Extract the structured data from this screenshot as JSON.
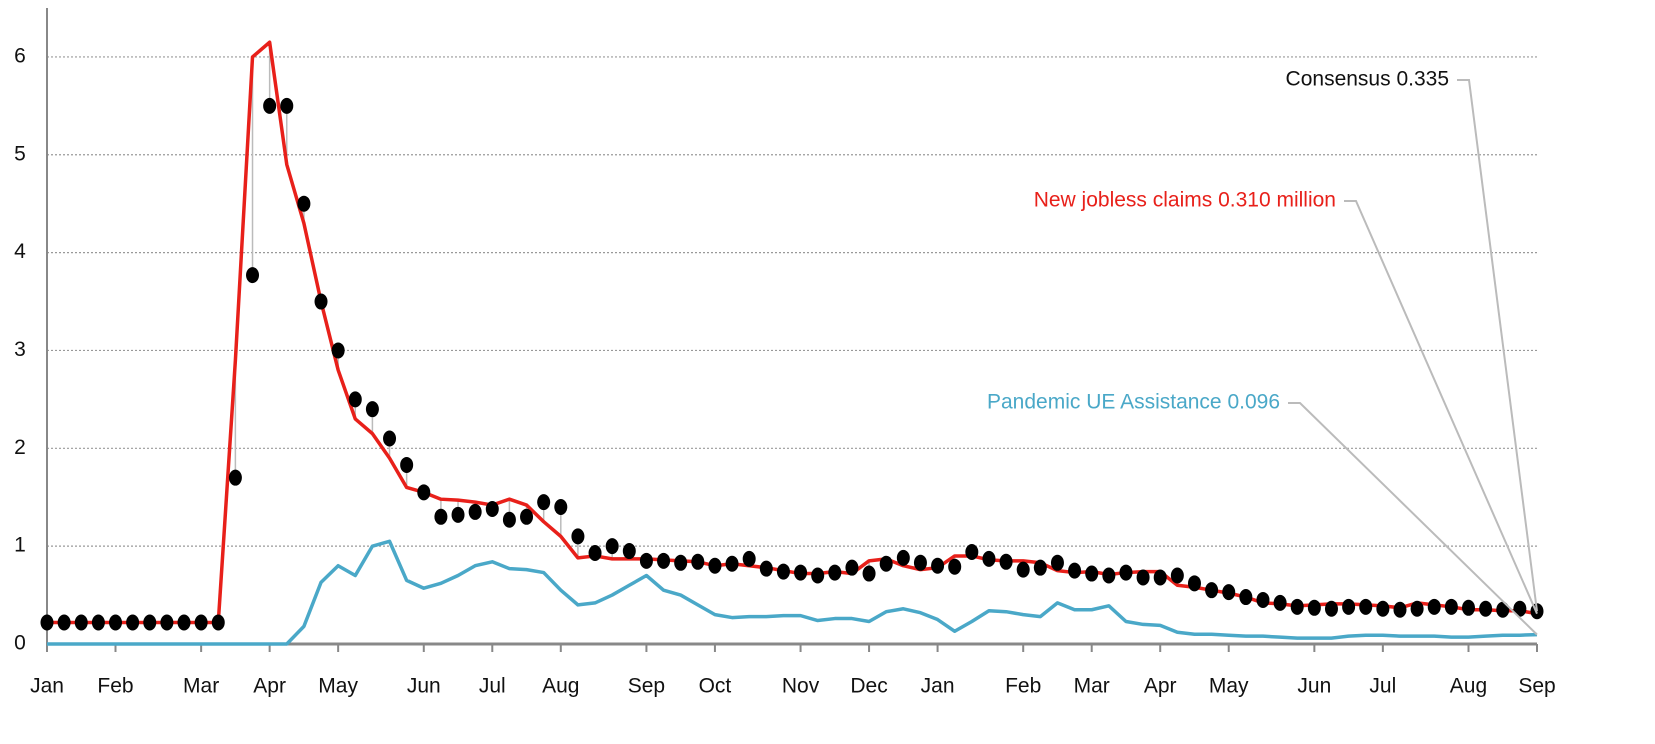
{
  "chart_data": {
    "type": "line",
    "categories": [
      "Jan",
      null,
      null,
      null,
      "Feb",
      null,
      null,
      null,
      null,
      "Mar",
      null,
      null,
      null,
      "Apr",
      null,
      null,
      null,
      "May",
      null,
      null,
      null,
      null,
      "Jun",
      null,
      null,
      null,
      "Jul",
      null,
      null,
      null,
      "Aug",
      null,
      null,
      null,
      null,
      "Sep",
      null,
      null,
      null,
      "Oct",
      null,
      null,
      null,
      null,
      "Nov",
      null,
      null,
      null,
      "Dec",
      null,
      null,
      null,
      "Jan",
      null,
      null,
      null,
      null,
      "Feb",
      null,
      null,
      null,
      "Mar",
      null,
      null,
      null,
      "Apr",
      null,
      null,
      null,
      "May",
      null,
      null,
      null,
      null,
      "Jun",
      null,
      null,
      null,
      "Jul",
      null,
      null,
      null,
      null,
      "Aug",
      null,
      null,
      null,
      "Sep"
    ],
    "ylim": [
      0,
      6.5
    ],
    "yticks": [
      0,
      1,
      2,
      3,
      4,
      5,
      6
    ],
    "grid": true,
    "series": [
      {
        "name": "Pandemic UE Assistance 0.096",
        "color": "#4aa8c8",
        "style": "line",
        "values": [
          0,
          0,
          0,
          0,
          0,
          0,
          0,
          0,
          0,
          0,
          0,
          0,
          0,
          0,
          0,
          0.18,
          0.63,
          0.8,
          0.7,
          1.0,
          1.05,
          0.65,
          0.57,
          0.62,
          0.7,
          0.8,
          0.84,
          0.77,
          0.76,
          0.73,
          0.55,
          0.4,
          0.42,
          0.5,
          0.6,
          0.7,
          0.55,
          0.5,
          0.4,
          0.3,
          0.27,
          0.28,
          0.28,
          0.29,
          0.29,
          0.24,
          0.26,
          0.26,
          0.23,
          0.33,
          0.36,
          0.32,
          0.25,
          0.13,
          0.23,
          0.34,
          0.33,
          0.3,
          0.28,
          0.42,
          0.35,
          0.35,
          0.39,
          0.23,
          0.2,
          0.19,
          0.12,
          0.1,
          0.1,
          0.09,
          0.08,
          0.08,
          0.07,
          0.06,
          0.06,
          0.06,
          0.08,
          0.09,
          0.09,
          0.08,
          0.08,
          0.08,
          0.07,
          0.07,
          0.08,
          0.09,
          0.09,
          0.096
        ]
      },
      {
        "name": "New jobless claims 0.310 million",
        "color": "#e8201a",
        "style": "line",
        "values": [
          0.22,
          0.22,
          0.22,
          0.22,
          0.22,
          0.22,
          0.22,
          0.22,
          0.22,
          0.22,
          0.22,
          2.9,
          6.0,
          6.15,
          4.9,
          4.3,
          3.5,
          2.8,
          2.3,
          2.15,
          1.9,
          1.6,
          1.55,
          1.48,
          1.47,
          1.45,
          1.42,
          1.48,
          1.42,
          1.25,
          1.1,
          0.88,
          0.9,
          0.87,
          0.87,
          0.87,
          0.86,
          0.85,
          0.84,
          0.8,
          0.82,
          0.8,
          0.78,
          0.75,
          0.72,
          0.72,
          0.74,
          0.72,
          0.85,
          0.87,
          0.8,
          0.76,
          0.78,
          0.9,
          0.9,
          0.86,
          0.85,
          0.85,
          0.83,
          0.75,
          0.73,
          0.74,
          0.71,
          0.73,
          0.74,
          0.74,
          0.6,
          0.58,
          0.55,
          0.52,
          0.48,
          0.42,
          0.41,
          0.39,
          0.4,
          0.41,
          0.41,
          0.4,
          0.39,
          0.37,
          0.42,
          0.4,
          0.38,
          0.35,
          0.35,
          0.34,
          0.34,
          0.31
        ]
      },
      {
        "name": "Consensus 0.335",
        "color": "#000000",
        "style": "dots",
        "values": [
          0.22,
          0.22,
          0.22,
          0.22,
          0.22,
          0.22,
          0.22,
          0.22,
          0.22,
          0.22,
          0.22,
          1.7,
          3.77,
          5.5,
          5.5,
          4.5,
          3.5,
          3.0,
          2.5,
          2.4,
          2.1,
          1.83,
          1.55,
          1.3,
          1.32,
          1.35,
          1.38,
          1.27,
          1.3,
          1.45,
          1.4,
          1.1,
          0.93,
          1.0,
          0.95,
          0.85,
          0.85,
          0.83,
          0.84,
          0.8,
          0.82,
          0.87,
          0.77,
          0.74,
          0.73,
          0.7,
          0.73,
          0.78,
          0.72,
          0.82,
          0.88,
          0.83,
          0.8,
          0.79,
          0.94,
          0.87,
          0.84,
          0.76,
          0.78,
          0.83,
          0.75,
          0.72,
          0.7,
          0.73,
          0.68,
          0.68,
          0.7,
          0.62,
          0.55,
          0.53,
          0.48,
          0.45,
          0.42,
          0.38,
          0.37,
          0.36,
          0.38,
          0.38,
          0.36,
          0.35,
          0.36,
          0.38,
          0.38,
          0.37,
          0.36,
          0.35,
          0.36,
          0.335
        ]
      }
    ]
  }
}
